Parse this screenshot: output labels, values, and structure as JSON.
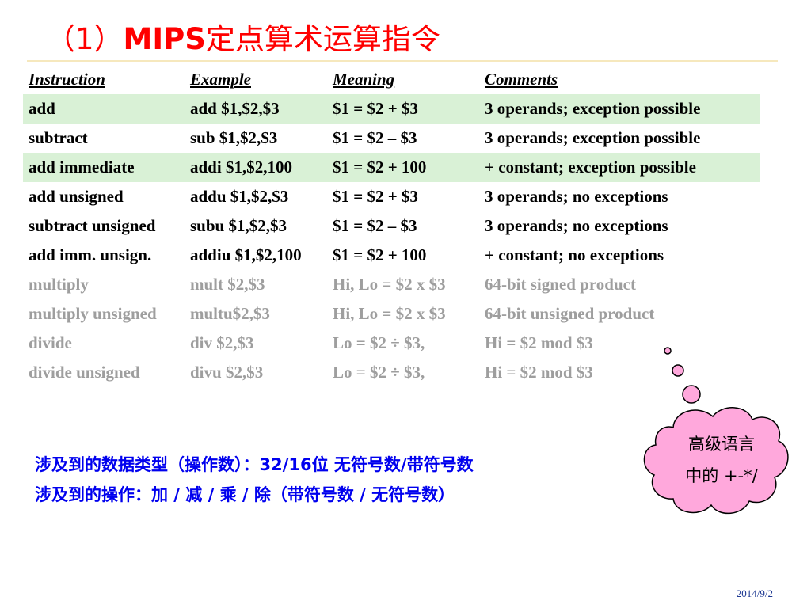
{
  "title": {
    "prefix": "（1）",
    "ascii": "MIPS",
    "rest": "定点算术运算指令"
  },
  "table": {
    "headers": {
      "instruction": "Instruction",
      "example": "Example",
      "meaning": "Meaning",
      "comments": "Comments"
    },
    "rows": [
      {
        "instruction": "add",
        "example": "add $1,$2,$3",
        "meaning": "$1 = $2 + $3",
        "comments": "3 operands; exception possible",
        "shaded": true,
        "muted": false
      },
      {
        "instruction": "subtract",
        "example": "sub $1,$2,$3",
        "meaning": "$1 = $2 – $3",
        "comments": "3 operands; exception possible",
        "shaded": false,
        "muted": false
      },
      {
        "instruction": "add immediate",
        "example": "addi $1,$2,100",
        "meaning": "$1 = $2 + 100",
        "comments": "+ constant; exception possible",
        "shaded": true,
        "muted": false
      },
      {
        "instruction": "add unsigned",
        "example": "addu $1,$2,$3",
        "meaning": "$1 = $2 + $3",
        "comments": "3 operands; no exceptions",
        "shaded": false,
        "muted": false
      },
      {
        "instruction": "subtract unsigned",
        "example": "subu $1,$2,$3",
        "meaning": "$1 = $2 – $3",
        "comments": "3 operands; no exceptions",
        "shaded": false,
        "muted": false
      },
      {
        "instruction": "add imm. unsign.",
        "example": "addiu $1,$2,100",
        "meaning": "$1 = $2 + 100",
        "comments": "+ constant; no exceptions",
        "shaded": false,
        "muted": false
      },
      {
        "instruction": "multiply",
        "example": "mult $2,$3",
        "meaning": "Hi, Lo = $2 x $3",
        "comments": "64-bit signed product",
        "shaded": false,
        "muted": true
      },
      {
        "instruction": "multiply unsigned",
        "example": "multu$2,$3",
        "meaning": "Hi, Lo = $2 x $3",
        "comments": "64-bit unsigned product",
        "shaded": false,
        "muted": true
      },
      {
        "instruction": "divide",
        "example": "div $2,$3",
        "meaning": "Lo = $2 ÷ $3,",
        "comments": "Hi = $2 mod $3",
        "shaded": false,
        "muted": true
      },
      {
        "instruction": "divide unsigned",
        "example": "divu $2,$3",
        "meaning": "Lo = $2 ÷ $3,",
        "comments": "Hi = $2 mod $3",
        "shaded": false,
        "muted": true
      }
    ]
  },
  "notes": {
    "line1": "涉及到的数据类型（操作数）：32/16位 无符号数/带符号数",
    "line2": "涉及到的操作：加 / 减 /  乘 / 除（带符号数 / 无符号数）"
  },
  "bubble": {
    "line1": "高级语言",
    "line2": "中的 +-*/",
    "fill_color": "#ffa8dc",
    "stroke_color": "#000000"
  },
  "footer": {
    "date": "2014/9/2"
  },
  "colors": {
    "title": "#ff0000",
    "notes": "#0000ee",
    "row_shade": "#d9f1d6",
    "muted_text": "#9e9e9e",
    "title_rule": "#f6e8bd"
  }
}
